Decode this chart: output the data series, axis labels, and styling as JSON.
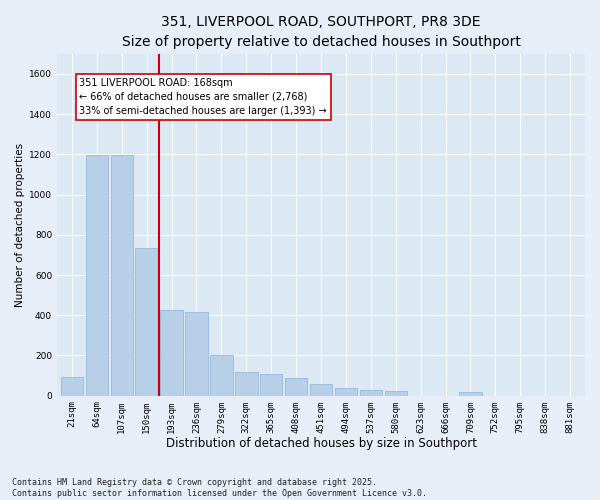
{
  "title": "351, LIVERPOOL ROAD, SOUTHPORT, PR8 3DE",
  "subtitle": "Size of property relative to detached houses in Southport",
  "xlabel": "Distribution of detached houses by size in Southport",
  "ylabel": "Number of detached properties",
  "categories": [
    "21sqm",
    "64sqm",
    "107sqm",
    "150sqm",
    "193sqm",
    "236sqm",
    "279sqm",
    "322sqm",
    "365sqm",
    "408sqm",
    "451sqm",
    "494sqm",
    "537sqm",
    "580sqm",
    "623sqm",
    "666sqm",
    "709sqm",
    "752sqm",
    "795sqm",
    "838sqm",
    "881sqm"
  ],
  "values": [
    95,
    1195,
    1195,
    735,
    425,
    415,
    200,
    120,
    110,
    90,
    60,
    40,
    30,
    25,
    0,
    0,
    20,
    0,
    0,
    0,
    0
  ],
  "bar_color": "#b8cfe8",
  "bar_edgecolor": "#8db0d8",
  "vline_color": "#cc0000",
  "vline_x_index": 3,
  "annotation_text": "351 LIVERPOOL ROAD: 168sqm\n← 66% of detached houses are smaller (2,768)\n33% of semi-detached houses are larger (1,393) →",
  "annotation_box_facecolor": "#ffffff",
  "annotation_box_edgecolor": "#cc0000",
  "ylim": [
    0,
    1700
  ],
  "yticks": [
    0,
    200,
    400,
    600,
    800,
    1000,
    1200,
    1400,
    1600
  ],
  "bg_color": "#dde8f5",
  "fig_bg_color": "#e8eef8",
  "footnote": "Contains HM Land Registry data © Crown copyright and database right 2025.\nContains public sector information licensed under the Open Government Licence v3.0.",
  "title_fontsize": 10,
  "xlabel_fontsize": 8.5,
  "ylabel_fontsize": 7.5,
  "tick_fontsize": 6.5,
  "footnote_fontsize": 6
}
